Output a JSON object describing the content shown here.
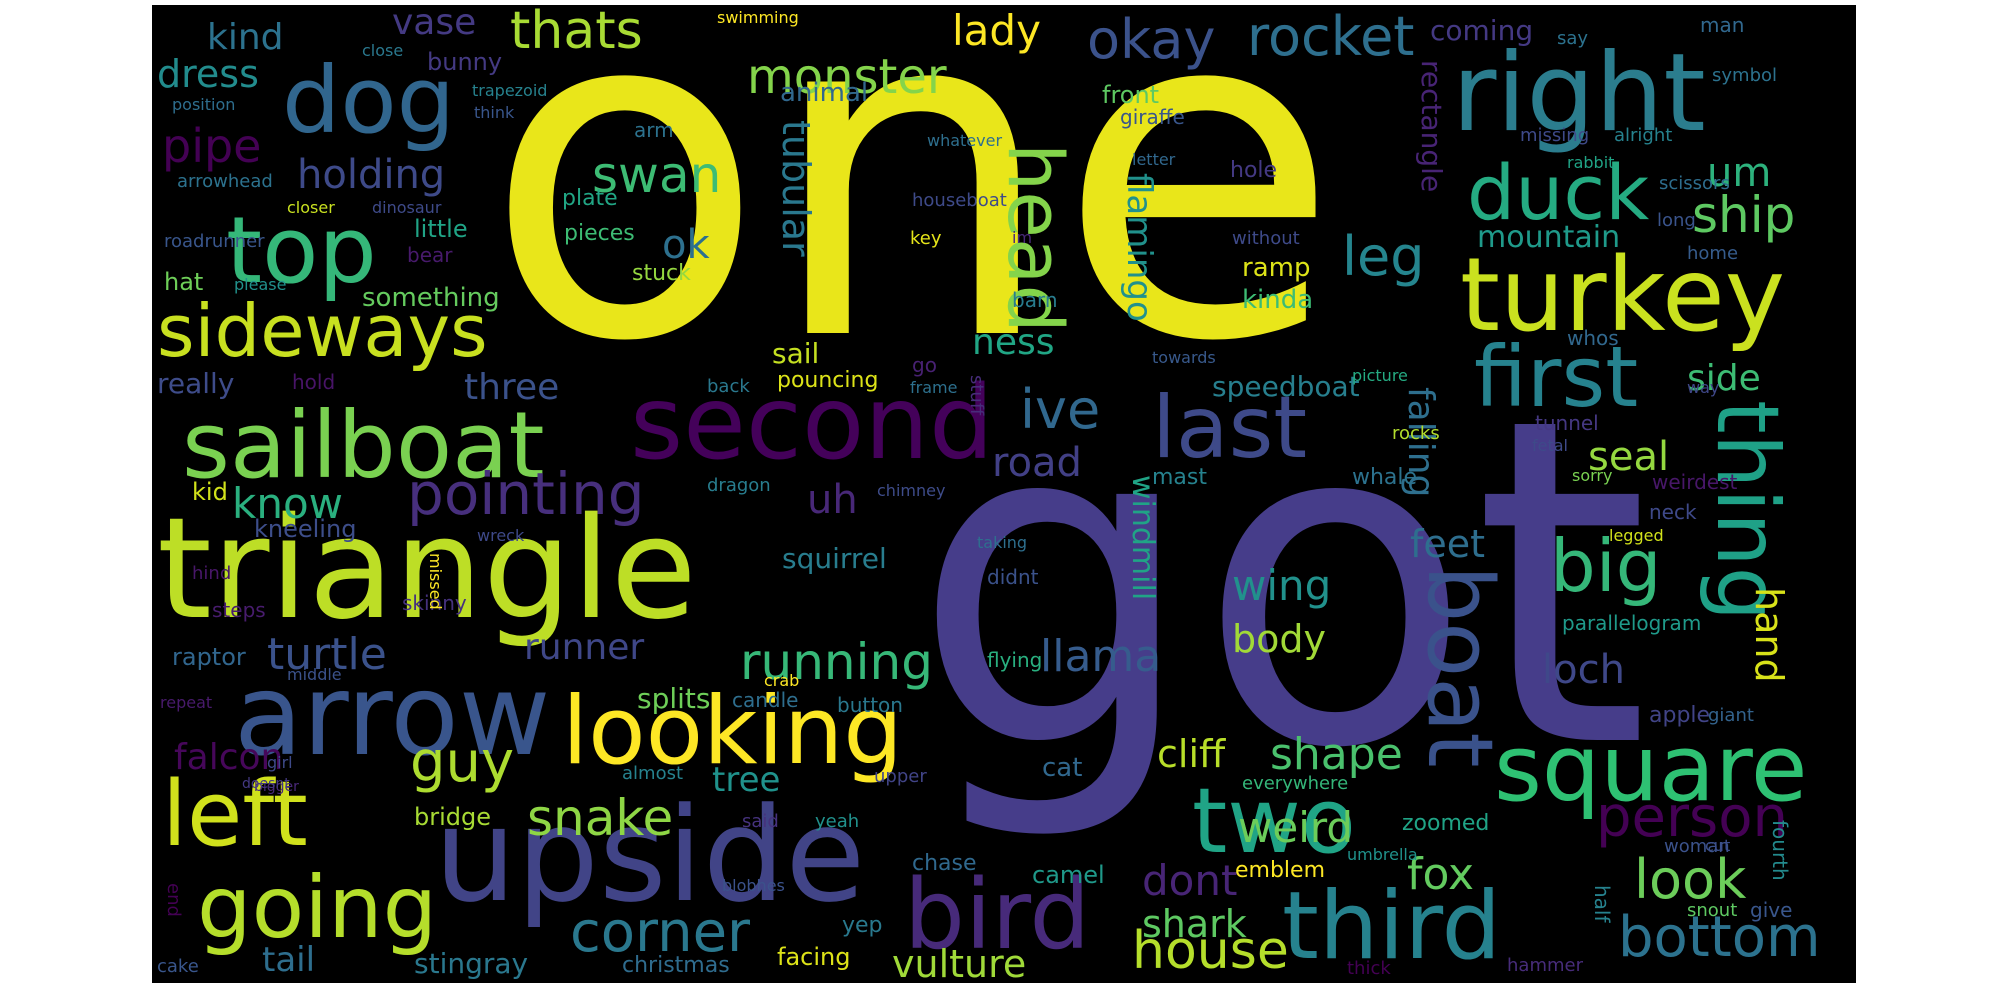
{
  "words": [
    {
      "text": "one",
      "color": "#e9e61a"
    },
    {
      "text": "got",
      "color": "#463d8a"
    },
    {
      "text": "triangle",
      "color": "#bdde26"
    },
    {
      "text": "upside",
      "color": "#414487"
    },
    {
      "text": "arrow",
      "color": "#39558c"
    },
    {
      "text": "second",
      "color": "#44015a"
    },
    {
      "text": "right",
      "color": "#2b7d8e"
    },
    {
      "text": "turkey",
      "color": "#cae11f"
    },
    {
      "text": "sailboat",
      "color": "#7ad151"
    },
    {
      "text": "looking",
      "color": "#fde725"
    },
    {
      "text": "dog",
      "color": "#31668e"
    },
    {
      "text": "top",
      "color": "#35b779"
    },
    {
      "text": "square",
      "color": "#2ec173"
    },
    {
      "text": "third",
      "color": "#26828e"
    },
    {
      "text": "bird",
      "color": "#472a7a"
    },
    {
      "text": "boat",
      "color": "#3a528b"
    },
    {
      "text": "two",
      "color": "#20a486"
    },
    {
      "text": "left",
      "color": "#d0e11c"
    },
    {
      "text": "first",
      "color": "#26828e"
    },
    {
      "text": "thing",
      "color": "#1fa187"
    },
    {
      "text": "going",
      "color": "#b5de2b"
    },
    {
      "text": "last",
      "color": "#3e4a89"
    },
    {
      "text": "sideways",
      "color": "#c8e020"
    },
    {
      "text": "duck",
      "color": "#25ab82"
    },
    {
      "text": "head",
      "color": "#84d44b"
    },
    {
      "text": "pointing",
      "color": "#472f7d"
    },
    {
      "text": "big",
      "color": "#35b779"
    },
    {
      "text": "bottom",
      "color": "#2c728e"
    },
    {
      "text": "person",
      "color": "#440154"
    },
    {
      "text": "corner",
      "color": "#2a788e"
    },
    {
      "text": "house",
      "color": "#b5de2b"
    },
    {
      "text": "look",
      "color": "#6ccd5a"
    },
    {
      "text": "okay",
      "color": "#3b528b"
    },
    {
      "text": "rocket",
      "color": "#2e6f8e"
    },
    {
      "text": "monster",
      "color": "#84d44b"
    },
    {
      "text": "thats",
      "color": "#a8db34"
    },
    {
      "text": "swan",
      "color": "#3dbc74"
    },
    {
      "text": "guy",
      "color": "#addc30"
    },
    {
      "text": "snake",
      "color": "#8ed645"
    },
    {
      "text": "turtle",
      "color": "#3b528b"
    },
    {
      "text": "running",
      "color": "#37b878"
    },
    {
      "text": "llama",
      "color": "#365c8d"
    },
    {
      "text": "leg",
      "color": "#25858e"
    },
    {
      "text": "ship",
      "color": "#5ec962"
    },
    {
      "text": "ive",
      "color": "#31688e"
    },
    {
      "text": "vulture",
      "color": "#a0da39"
    },
    {
      "text": "shape",
      "color": "#4ac16d"
    },
    {
      "text": "weird",
      "color": "#6ccd5a"
    },
    {
      "text": "dont",
      "color": "#482576"
    },
    {
      "text": "shark",
      "color": "#5ec962"
    },
    {
      "text": "fox",
      "color": "#63cb5f"
    },
    {
      "text": "seal",
      "color": "#95d840"
    },
    {
      "text": "uh",
      "color": "#482878"
    },
    {
      "text": "ok",
      "color": "#2d708e"
    },
    {
      "text": "holding",
      "color": "#3e4a89"
    },
    {
      "text": "know",
      "color": "#2ab07f"
    },
    {
      "text": "three",
      "color": "#3b528b"
    },
    {
      "text": "pipe",
      "color": "#440154"
    },
    {
      "text": "dress",
      "color": "#228c8d"
    },
    {
      "text": "kind",
      "color": "#2c728e"
    },
    {
      "text": "lady",
      "color": "#fde725"
    },
    {
      "text": "vase",
      "color": "#443a83"
    },
    {
      "text": "tail",
      "color": "#2e6e8e"
    },
    {
      "text": "stingray",
      "color": "#2a788e"
    },
    {
      "text": "cliff",
      "color": "#b8de29"
    },
    {
      "text": "tree",
      "color": "#20928c"
    },
    {
      "text": "road",
      "color": "#424086"
    },
    {
      "text": "feet",
      "color": "#2e6e8e"
    },
    {
      "text": "wing",
      "color": "#21918c"
    },
    {
      "text": "body",
      "color": "#a2da37"
    },
    {
      "text": "loch",
      "color": "#3f4889"
    },
    {
      "text": "side",
      "color": "#3dbc74"
    },
    {
      "text": "um",
      "color": "#2db27d"
    },
    {
      "text": "mountain",
      "color": "#1f9a8a"
    },
    {
      "text": "falcon",
      "color": "#46075a"
    },
    {
      "text": "runner",
      "color": "#3f4788"
    },
    {
      "text": "splits",
      "color": "#6ece58"
    },
    {
      "text": "bridge",
      "color": "#a8db34"
    },
    {
      "text": "squirrel",
      "color": "#287d8e"
    },
    {
      "text": "speedboat",
      "color": "#277f8e"
    },
    {
      "text": "ness",
      "color": "#21a685"
    },
    {
      "text": "sail",
      "color": "#c5e021"
    },
    {
      "text": "ramp",
      "color": "#dde318"
    },
    {
      "text": "kinda",
      "color": "#3dbc74"
    },
    {
      "text": "something",
      "color": "#65cb5e"
    },
    {
      "text": "little",
      "color": "#20a486"
    },
    {
      "text": "hat",
      "color": "#6ece58"
    },
    {
      "text": "really",
      "color": "#3e4c8a"
    },
    {
      "text": "kneeling",
      "color": "#3d4e8a"
    },
    {
      "text": "kid",
      "color": "#d2e21b"
    },
    {
      "text": "raptor",
      "color": "#31668e"
    },
    {
      "text": "camel",
      "color": "#1f998a"
    },
    {
      "text": "chase",
      "color": "#30698e"
    },
    {
      "text": "cat",
      "color": "#31688e"
    },
    {
      "text": "facing",
      "color": "#dde318"
    },
    {
      "text": "christmas",
      "color": "#2f6c8e"
    },
    {
      "text": "yep",
      "color": "#29798e"
    },
    {
      "text": "tubular",
      "color": "#2a788e"
    },
    {
      "text": "flamingo",
      "color": "#21918c"
    },
    {
      "text": "windmill",
      "color": "#20a486"
    },
    {
      "text": "falling",
      "color": "#2e6f8e"
    },
    {
      "text": "hand",
      "color": "#d8e219"
    },
    {
      "text": "rectangle",
      "color": "#482475"
    },
    {
      "text": "coming",
      "color": "#443983"
    },
    {
      "text": "bunny",
      "color": "#443a83"
    },
    {
      "text": "animal",
      "color": "#31688e"
    },
    {
      "text": "front",
      "color": "#5ec962"
    },
    {
      "text": "arm",
      "color": "#2c728e"
    },
    {
      "text": "plate",
      "color": "#21a685"
    },
    {
      "text": "pieces",
      "color": "#3dbc74"
    },
    {
      "text": "stuck",
      "color": "#95d840"
    },
    {
      "text": "bear",
      "color": "#481a6c"
    },
    {
      "text": "giraffe",
      "color": "#39568c"
    },
    {
      "text": "hole",
      "color": "#443983"
    },
    {
      "text": "without",
      "color": "#3e4a89"
    },
    {
      "text": "letter",
      "color": "#31688e"
    },
    {
      "text": "key",
      "color": "#e5e419"
    },
    {
      "text": "barn",
      "color": "#287c8e"
    },
    {
      "text": "im",
      "color": "#482979"
    },
    {
      "text": "go",
      "color": "#482173"
    },
    {
      "text": "stuff",
      "color": "#472c7a"
    },
    {
      "text": "frame",
      "color": "#2d708e"
    },
    {
      "text": "towards",
      "color": "#38598c"
    },
    {
      "text": "pouncing",
      "color": "#dde318"
    },
    {
      "text": "back",
      "color": "#2a788e"
    },
    {
      "text": "whos",
      "color": "#31688e"
    },
    {
      "text": "picture",
      "color": "#25ab82"
    },
    {
      "text": "rocks",
      "color": "#b2dd2d"
    },
    {
      "text": "tunnel",
      "color": "#453882"
    },
    {
      "text": "fetal",
      "color": "#3e4a89"
    },
    {
      "text": "mast",
      "color": "#26828e"
    },
    {
      "text": "whale",
      "color": "#2c728e"
    },
    {
      "text": "dragon",
      "color": "#287d8e"
    },
    {
      "text": "chimney",
      "color": "#3e4c8a"
    },
    {
      "text": "weirdest",
      "color": "#481769"
    },
    {
      "text": "neck",
      "color": "#3e4989"
    },
    {
      "text": "sorry",
      "color": "#7ad151"
    },
    {
      "text": "legged",
      "color": "#d2e21b"
    },
    {
      "text": "parallelogram",
      "color": "#1f9a8a"
    },
    {
      "text": "apple",
      "color": "#414487"
    },
    {
      "text": "giant",
      "color": "#33638d"
    },
    {
      "text": "woman",
      "color": "#3b528b"
    },
    {
      "text": "cut",
      "color": "#3c4f8a"
    },
    {
      "text": "half",
      "color": "#26828e"
    },
    {
      "text": "snout",
      "color": "#5ec962"
    },
    {
      "text": "give",
      "color": "#39568c"
    },
    {
      "text": "fourth",
      "color": "#238a8d"
    },
    {
      "text": "hammer",
      "color": "#472c7a"
    },
    {
      "text": "thick",
      "color": "#440154"
    },
    {
      "text": "umbrella",
      "color": "#20928c"
    },
    {
      "text": "everywhere",
      "color": "#34b679"
    },
    {
      "text": "emblem",
      "color": "#fde725"
    },
    {
      "text": "zoomed",
      "color": "#20a486"
    },
    {
      "text": "flying",
      "color": "#29af7f"
    },
    {
      "text": "crab",
      "color": "#fde725"
    },
    {
      "text": "candle",
      "color": "#2e6e8e"
    },
    {
      "text": "button",
      "color": "#2a788e"
    },
    {
      "text": "almost",
      "color": "#26828e"
    },
    {
      "text": "upper",
      "color": "#414487"
    },
    {
      "text": "said",
      "color": "#46327e"
    },
    {
      "text": "yeah",
      "color": "#21918c"
    },
    {
      "text": "blobhes",
      "color": "#3b528b"
    },
    {
      "text": "end",
      "color": "#440154"
    },
    {
      "text": "cake",
      "color": "#39568c"
    },
    {
      "text": "repeat",
      "color": "#481a6c"
    },
    {
      "text": "middle",
      "color": "#3b528b"
    },
    {
      "text": "skinny",
      "color": "#46327e"
    },
    {
      "text": "steps",
      "color": "#481c6e"
    },
    {
      "text": "hind",
      "color": "#481769"
    },
    {
      "text": "missed",
      "color": "#fde725"
    },
    {
      "text": "wreck",
      "color": "#3e4989"
    },
    {
      "text": "taking",
      "color": "#2e6f8e"
    },
    {
      "text": "didnt",
      "color": "#3b528b"
    },
    {
      "text": "girl",
      "color": "#3e4a89"
    },
    {
      "text": "bigger",
      "color": "#482878"
    },
    {
      "text": "doesnt",
      "color": "#443983"
    },
    {
      "text": "hold",
      "color": "#481467"
    },
    {
      "text": "roadrunner",
      "color": "#39568c"
    },
    {
      "text": "please",
      "color": "#21918c"
    },
    {
      "text": "closer",
      "color": "#c8e020"
    },
    {
      "text": "dinosaur",
      "color": "#3e4a89"
    },
    {
      "text": "arrowhead",
      "color": "#2c728e"
    },
    {
      "text": "position",
      "color": "#2e6e8e"
    },
    {
      "text": "trapezoid",
      "color": "#26828e"
    },
    {
      "text": "think",
      "color": "#39568c"
    },
    {
      "text": "close",
      "color": "#2a788e"
    },
    {
      "text": "swimming",
      "color": "#fde725"
    },
    {
      "text": "whatever",
      "color": "#2e6f8e"
    },
    {
      "text": "houseboat",
      "color": "#3e4a89"
    },
    {
      "text": "say",
      "color": "#2c728e"
    },
    {
      "text": "symbol",
      "color": "#2c728e"
    },
    {
      "text": "man",
      "color": "#31688e"
    },
    {
      "text": "missing",
      "color": "#3e4a89"
    },
    {
      "text": "alright",
      "color": "#26828e"
    },
    {
      "text": "rabbit",
      "color": "#20a486"
    },
    {
      "text": "scissors",
      "color": "#2e6e8e"
    },
    {
      "text": "long",
      "color": "#3a548c"
    },
    {
      "text": "home",
      "color": "#365c8d"
    },
    {
      "text": "way",
      "color": "#3f4788"
    },
    {
      "text": "ears",
      "color": "#3b528b"
    }
  ]
}
